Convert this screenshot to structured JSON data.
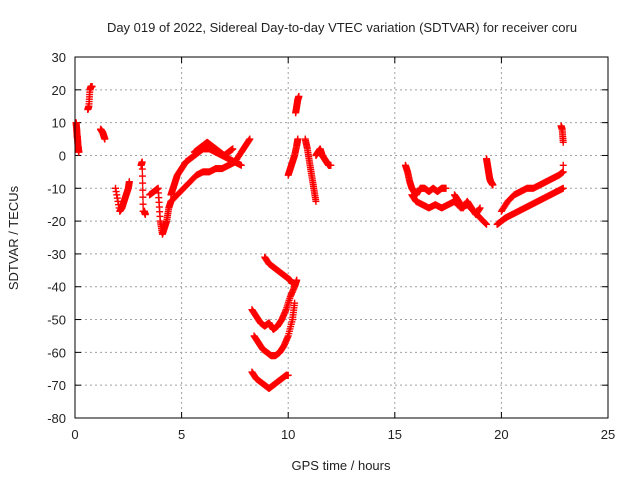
{
  "chart_data": {
    "type": "scatter",
    "title": "Day 019 of 2022, Sidereal Day-to-day VTEC variation (SDTVAR) for receiver coru",
    "xlabel": "GPS time / hours",
    "ylabel": "SDTVAR / TECUs",
    "xlim": [
      0,
      25
    ],
    "ylim": [
      -80,
      30
    ],
    "xticks": [
      0,
      5,
      10,
      15,
      20,
      25
    ],
    "yticks": [
      -80,
      -70,
      -60,
      -50,
      -40,
      -30,
      -20,
      -10,
      0,
      10,
      20,
      30
    ],
    "grid": true,
    "marker": "+",
    "color": "#ff0000",
    "segments": [
      {
        "x": [
          0.05,
          0.08,
          0.1,
          0.12,
          0.14,
          0.16,
          0.18
        ],
        "y": [
          10,
          8,
          6,
          5,
          3,
          2,
          1
        ]
      },
      {
        "x": [
          0.6,
          0.65,
          0.7,
          0.75,
          0.8
        ],
        "y": [
          14,
          15,
          20,
          21,
          21
        ]
      },
      {
        "x": [
          1.2,
          1.25,
          1.3,
          1.35,
          1.4
        ],
        "y": [
          8,
          7.5,
          7,
          6,
          5
        ]
      },
      {
        "x": [
          1.9,
          2.1,
          2.2,
          2.3,
          2.4,
          2.5,
          2.55
        ],
        "y": [
          -10,
          -17,
          -16,
          -14,
          -12,
          -10,
          -8
        ]
      },
      {
        "x": [
          3.1,
          3.15,
          3.2,
          3.25,
          3.3
        ],
        "y": [
          -3,
          -2,
          -17,
          -17,
          -18
        ]
      },
      {
        "x": [
          3.5,
          3.7,
          3.9,
          4.0,
          4.1,
          4.2,
          4.3,
          4.4,
          4.5
        ],
        "y": [
          -12,
          -11,
          -10,
          -20,
          -24,
          -22,
          -20,
          -16,
          -14
        ]
      },
      {
        "x": [
          4.5,
          4.6,
          4.7,
          4.8,
          5.0,
          5.2,
          5.4,
          5.6,
          5.8,
          6.0,
          6.3,
          6.6,
          6.9,
          7.2,
          7.5,
          7.8
        ],
        "y": [
          -12,
          -10,
          -8,
          -6,
          -4,
          -2,
          -1,
          0,
          1,
          2,
          2,
          1,
          0,
          -1,
          -2,
          -3
        ]
      },
      {
        "x": [
          4.5,
          4.8,
          5.1,
          5.4,
          5.7,
          6.0,
          6.3,
          6.6,
          6.9,
          7.2,
          7.5,
          7.8,
          8.0,
          8.2
        ],
        "y": [
          -14,
          -12,
          -10,
          -8,
          -6,
          -5,
          -5,
          -4,
          -4,
          -3,
          -2,
          1,
          3,
          5
        ]
      },
      {
        "x": [
          5.6,
          5.8,
          6.0,
          6.2,
          6.4,
          6.6,
          6.8,
          7.0,
          7.2,
          7.4
        ],
        "y": [
          1,
          2,
          3,
          4,
          3,
          2,
          1,
          0,
          1,
          2
        ]
      },
      {
        "x": [
          8.3,
          8.5,
          8.7,
          8.9,
          9.1,
          9.3,
          9.5,
          9.7,
          9.9,
          10.1,
          10.3,
          10.4
        ],
        "y": [
          -47,
          -49,
          -51,
          -52,
          -51,
          -53,
          -52,
          -50,
          -47,
          -43,
          -40,
          -38
        ]
      },
      {
        "x": [
          8.4,
          8.6,
          8.8,
          9.0,
          9.2,
          9.4,
          9.6,
          9.8,
          10.0,
          10.2,
          10.3
        ],
        "y": [
          -55,
          -57,
          -59,
          -60,
          -61,
          -61,
          -60,
          -58,
          -55,
          -50,
          -45
        ]
      },
      {
        "x": [
          8.9,
          9.1,
          9.3,
          9.5,
          9.7,
          9.9,
          10.1,
          10.2
        ],
        "y": [
          -31,
          -33,
          -34,
          -35,
          -36,
          -37,
          -38,
          -39
        ]
      },
      {
        "x": [
          8.3,
          8.5,
          8.7,
          8.9,
          9.1,
          9.3,
          9.5,
          9.7,
          9.9,
          10.0
        ],
        "y": [
          -66,
          -68,
          -69,
          -70,
          -71,
          -70,
          -69,
          -68,
          -67,
          -67
        ]
      },
      {
        "x": [
          10.0,
          10.1,
          10.2,
          10.3,
          10.4,
          10.45
        ],
        "y": [
          -6,
          -4,
          -2,
          0,
          3,
          5
        ]
      },
      {
        "x": [
          10.35,
          10.4,
          10.45,
          10.5
        ],
        "y": [
          13,
          15,
          17,
          18
        ]
      },
      {
        "x": [
          10.8,
          10.9,
          11.0,
          11.1,
          11.2,
          11.3
        ],
        "y": [
          5,
          2,
          -2,
          -6,
          -10,
          -14
        ]
      },
      {
        "x": [
          11.3,
          11.4,
          11.5,
          11.6,
          11.7,
          11.8,
          11.9,
          12.0
        ],
        "y": [
          0,
          1,
          2,
          0,
          -1,
          -2,
          -3,
          -3
        ]
      },
      {
        "x": [
          15.5,
          15.6,
          15.7,
          15.8,
          15.9,
          16.0,
          16.2,
          16.4,
          16.6,
          16.8,
          17.0,
          17.2,
          17.4
        ],
        "y": [
          -3,
          -5,
          -8,
          -10,
          -11,
          -12,
          -10,
          -10,
          -11,
          -10,
          -11,
          -10,
          -10
        ]
      },
      {
        "x": [
          15.8,
          16.0,
          16.3,
          16.6,
          16.9,
          17.2,
          17.5,
          17.8,
          18.1,
          18.4,
          18.7,
          19.0,
          19.3
        ],
        "y": [
          -12,
          -14,
          -15,
          -16,
          -15,
          -16,
          -15,
          -14,
          -16,
          -15,
          -17,
          -19,
          -21
        ]
      },
      {
        "x": [
          17.8,
          18.0,
          18.2,
          18.4,
          18.6,
          18.8,
          19.0
        ],
        "y": [
          -12,
          -14,
          -16,
          -14,
          -16,
          -18,
          -16
        ]
      },
      {
        "x": [
          19.3,
          19.35,
          19.4,
          19.45,
          19.5,
          19.6
        ],
        "y": [
          -1,
          -3,
          -5,
          -7,
          -8,
          -9
        ]
      },
      {
        "x": [
          19.8,
          20.0,
          20.2,
          20.5,
          20.8,
          21.1,
          21.4,
          21.7,
          22.0,
          22.3,
          22.6,
          22.9
        ],
        "y": [
          -21,
          -20,
          -19,
          -18,
          -17,
          -16,
          -15,
          -14,
          -13,
          -12,
          -11,
          -10
        ]
      },
      {
        "x": [
          20.0,
          20.3,
          20.6,
          20.9,
          21.2,
          21.5,
          21.8,
          22.1,
          22.4,
          22.7,
          22.9
        ],
        "y": [
          -17,
          -14,
          -12,
          -11,
          -10,
          -10,
          -9,
          -8,
          -7,
          -6,
          -5
        ]
      },
      {
        "x": [
          22.8,
          22.85,
          22.9
        ],
        "y": [
          9,
          8,
          4
        ]
      },
      {
        "x": [
          22.9
        ],
        "y": [
          -3
        ]
      }
    ]
  }
}
